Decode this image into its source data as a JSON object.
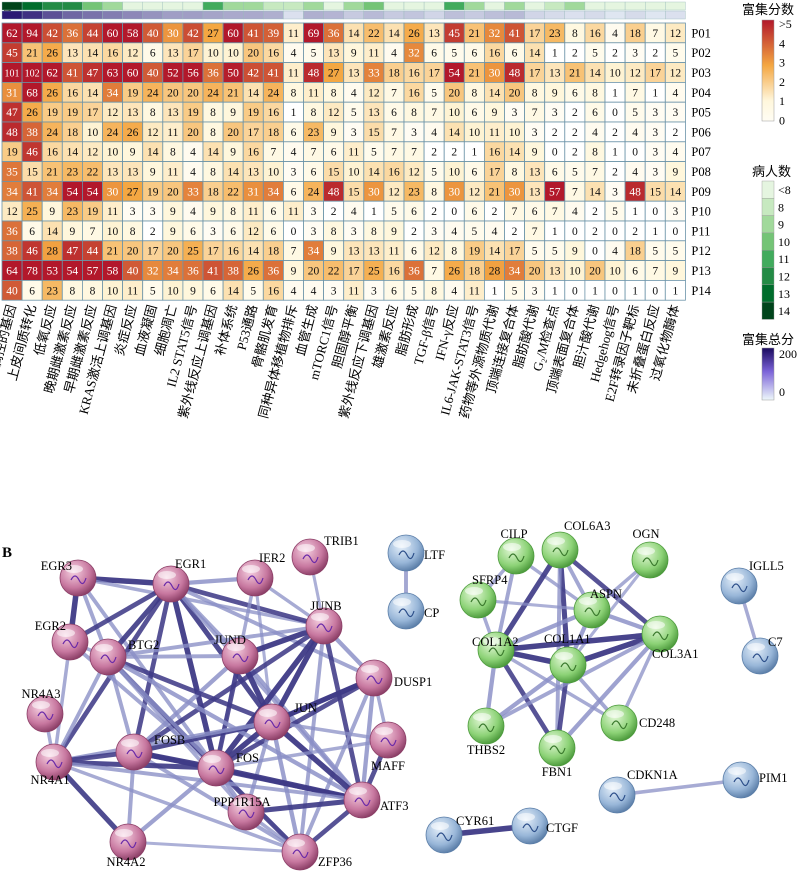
{
  "panelA": {
    "label": "A",
    "patients": [
      "P01",
      "P02",
      "P03",
      "P04",
      "P05",
      "P06",
      "P07",
      "P08",
      "P09",
      "P10",
      "P11",
      "P12",
      "P13",
      "P14"
    ],
    "pathways": [
      "响应TNF受NF-κB调控的基因",
      "上皮间质转化",
      "低氧反应",
      "晚期雌激素反应",
      "早期雌激素反应",
      "KRAS激活上调基因",
      "炎症反应",
      "血液凝固",
      "细胞凋亡",
      "IL2 STAT5信号",
      "紫外线反应上调基因",
      "补体系统",
      "P53通路",
      "骨骼肌发育",
      "同种异体移植物排斥",
      "血管生成",
      "mTORC1信号",
      "胆固醇平衡",
      "紫外线反应下调基因",
      "雄激素反应",
      "脂肪形成",
      "TGF-β信号",
      "IFN-γ反应",
      "IL6-JAK-STAT3信号",
      "药物等外源物质代谢",
      "顶端连接复合体",
      "脂肪酸代谢",
      "G₂/M检查点",
      "顶端表面复合体",
      "胆汁酸代谢",
      "Hedgehog信号",
      "E2F转录因子靶标",
      "未折叠蛋白反应",
      "过氧化物酶体"
    ],
    "matrix": [
      [
        62,
        94,
        42,
        36,
        44,
        60,
        58,
        40,
        30,
        42,
        27,
        60,
        41,
        39,
        11,
        69,
        36,
        14,
        22,
        14,
        26,
        13,
        45,
        21,
        32,
        41,
        17,
        23,
        8,
        16,
        4,
        18,
        7,
        12
      ],
      [
        45,
        21,
        26,
        13,
        14,
        16,
        12,
        6,
        13,
        17,
        10,
        10,
        20,
        16,
        4,
        5,
        13,
        9,
        11,
        4,
        32,
        6,
        5,
        6,
        16,
        6,
        14,
        1,
        2,
        5,
        2,
        3,
        2,
        5
      ],
      [
        101,
        102,
        62,
        41,
        47,
        63,
        60,
        40,
        52,
        56,
        36,
        50,
        42,
        41,
        11,
        48,
        27,
        13,
        33,
        18,
        16,
        17,
        54,
        21,
        30,
        48,
        17,
        13,
        21,
        14,
        10,
        12,
        17,
        12
      ],
      [
        31,
        68,
        26,
        16,
        14,
        34,
        19,
        24,
        20,
        20,
        24,
        21,
        14,
        24,
        8,
        11,
        8,
        4,
        12,
        7,
        16,
        5,
        20,
        8,
        14,
        20,
        8,
        9,
        6,
        8,
        1,
        7,
        1,
        4
      ],
      [
        47,
        26,
        19,
        19,
        17,
        12,
        13,
        8,
        13,
        19,
        8,
        9,
        19,
        16,
        1,
        8,
        12,
        5,
        13,
        6,
        8,
        7,
        10,
        6,
        9,
        3,
        7,
        3,
        2,
        6,
        0,
        5,
        3,
        3
      ],
      [
        48,
        38,
        24,
        18,
        10,
        24,
        26,
        12,
        11,
        20,
        8,
        20,
        17,
        18,
        6,
        23,
        9,
        3,
        15,
        7,
        3,
        4,
        14,
        10,
        11,
        10,
        3,
        2,
        2,
        4,
        2,
        4,
        3,
        2
      ],
      [
        19,
        46,
        16,
        14,
        12,
        10,
        9,
        14,
        8,
        4,
        14,
        9,
        16,
        7,
        4,
        7,
        6,
        11,
        5,
        7,
        7,
        2,
        2,
        1,
        16,
        14,
        9,
        0,
        2,
        8,
        1,
        0,
        3,
        4
      ],
      [
        35,
        15,
        21,
        23,
        22,
        13,
        13,
        9,
        11,
        4,
        8,
        14,
        13,
        10,
        3,
        6,
        15,
        10,
        14,
        16,
        12,
        5,
        10,
        6,
        17,
        8,
        13,
        6,
        5,
        7,
        2,
        4,
        3,
        9
      ],
      [
        34,
        41,
        34,
        54,
        54,
        30,
        27,
        19,
        20,
        33,
        18,
        22,
        31,
        34,
        6,
        24,
        48,
        15,
        30,
        12,
        23,
        8,
        30,
        12,
        21,
        30,
        13,
        57,
        7,
        14,
        3,
        48,
        15,
        14
      ],
      [
        12,
        25,
        9,
        23,
        19,
        11,
        3,
        3,
        9,
        4,
        9,
        8,
        11,
        6,
        11,
        3,
        2,
        4,
        1,
        5,
        6,
        2,
        0,
        6,
        2,
        7,
        6,
        7,
        4,
        2,
        5,
        1,
        0,
        3
      ],
      [
        36,
        6,
        14,
        9,
        7,
        10,
        8,
        2,
        9,
        6,
        3,
        6,
        12,
        6,
        0,
        3,
        8,
        3,
        8,
        9,
        2,
        3,
        4,
        5,
        4,
        2,
        7,
        1,
        0,
        2,
        0,
        2,
        1,
        0
      ],
      [
        38,
        46,
        28,
        47,
        44,
        21,
        20,
        17,
        20,
        25,
        17,
        16,
        14,
        18,
        7,
        34,
        9,
        13,
        13,
        11,
        6,
        12,
        8,
        19,
        14,
        17,
        5,
        5,
        9,
        0,
        4,
        18,
        5,
        5
      ],
      [
        64,
        78,
        53,
        54,
        57,
        58,
        40,
        32,
        34,
        36,
        41,
        38,
        26,
        36,
        9,
        20,
        22,
        17,
        25,
        16,
        36,
        7,
        26,
        18,
        28,
        34,
        20,
        13,
        10,
        20,
        10,
        6,
        7,
        9
      ],
      [
        40,
        6,
        23,
        8,
        8,
        10,
        11,
        5,
        10,
        9,
        6,
        14,
        5,
        16,
        4,
        4,
        3,
        11,
        3,
        6,
        5,
        8,
        4,
        11,
        1,
        5,
        3,
        1,
        0,
        1,
        0,
        1,
        0,
        1
      ]
    ],
    "patientCountBar": [
      14,
      13,
      12,
      12,
      10,
      9,
      7,
      7,
      6,
      6,
      11,
      9,
      9,
      8,
      8,
      9,
      6,
      9,
      10,
      7,
      7,
      7,
      11,
      9,
      6,
      9,
      7,
      8,
      9,
      7,
      6,
      7,
      6,
      7
    ],
    "totalBar": [
      200,
      180,
      150,
      130,
      120,
      110,
      100,
      90,
      80,
      80,
      75,
      70,
      70,
      65,
      20,
      65,
      60,
      40,
      55,
      40,
      45,
      30,
      50,
      40,
      50,
      55,
      30,
      25,
      20,
      25,
      15,
      25,
      15,
      20
    ],
    "legend": {
      "score_title": "富集分数",
      "score_ticks": [
        ">5",
        "4",
        "3",
        "2",
        "1",
        "0"
      ],
      "count_title": "病人数",
      "count_ticks": [
        "<8",
        "8",
        "9",
        "10",
        "11",
        "12",
        "13",
        "14"
      ],
      "count_colors": [
        "#e5f5e0",
        "#c7e9c0",
        "#a1d99b",
        "#74c476",
        "#41ab5d",
        "#238b45",
        "#006d2c",
        "#00441b"
      ],
      "total_title": "富集总分",
      "total_ticks": [
        "200",
        "100",
        "0"
      ]
    },
    "colors": {
      "score_high": "#b2182b",
      "score_mid": "#f4a742",
      "score_low": "#fff7dc",
      "grid": "#6b93a8"
    }
  },
  "panelB": {
    "label": "B",
    "nodes": [
      {
        "id": "EGR3",
        "group": "pink"
      },
      {
        "id": "EGR1",
        "group": "pink"
      },
      {
        "id": "IER2",
        "group": "pink"
      },
      {
        "id": "TRIB1",
        "group": "pink"
      },
      {
        "id": "EGR2",
        "group": "pink"
      },
      {
        "id": "JUND",
        "group": "pink"
      },
      {
        "id": "JUNB",
        "group": "pink"
      },
      {
        "id": "BTG2",
        "group": "pink"
      },
      {
        "id": "NR4A3",
        "group": "pink"
      },
      {
        "id": "DUSP1",
        "group": "pink"
      },
      {
        "id": "JUN",
        "group": "pink"
      },
      {
        "id": "FOSB",
        "group": "pink"
      },
      {
        "id": "FOS",
        "group": "pink"
      },
      {
        "id": "MAFF",
        "group": "pink"
      },
      {
        "id": "NR4A1",
        "group": "pink"
      },
      {
        "id": "ATF3",
        "group": "pink"
      },
      {
        "id": "PPP1R15A",
        "group": "pink"
      },
      {
        "id": "NR4A2",
        "group": "pink"
      },
      {
        "id": "ZFP36",
        "group": "pink"
      },
      {
        "id": "LTF",
        "group": "blue"
      },
      {
        "id": "CP",
        "group": "blue"
      },
      {
        "id": "CILP",
        "group": "green"
      },
      {
        "id": "COL6A3",
        "group": "green"
      },
      {
        "id": "OGN",
        "group": "green"
      },
      {
        "id": "SFRP4",
        "group": "green"
      },
      {
        "id": "ASPN",
        "group": "green"
      },
      {
        "id": "COL1A2",
        "group": "green"
      },
      {
        "id": "COL1A1",
        "group": "green"
      },
      {
        "id": "COL3A1",
        "group": "green"
      },
      {
        "id": "CD248",
        "group": "green"
      },
      {
        "id": "THBS2",
        "group": "green"
      },
      {
        "id": "FBN1",
        "group": "green"
      },
      {
        "id": "IGLL5",
        "group": "blue"
      },
      {
        "id": "C7",
        "group": "blue"
      },
      {
        "id": "CDKN1A",
        "group": "blue"
      },
      {
        "id": "PIM1",
        "group": "blue"
      },
      {
        "id": "CYR61",
        "group": "blue"
      },
      {
        "id": "CTGF",
        "group": "blue"
      }
    ],
    "edges": [
      [
        "EGR3",
        "EGR1",
        1
      ],
      [
        "EGR3",
        "EGR2",
        1
      ],
      [
        "EGR3",
        "BTG2",
        0.6
      ],
      [
        "EGR3",
        "JUNB",
        0.5
      ],
      [
        "EGR3",
        "FOS",
        0.6
      ],
      [
        "EGR1",
        "IER2",
        0.7
      ],
      [
        "EGR1",
        "JUND",
        0.6
      ],
      [
        "EGR1",
        "JUNB",
        0.8
      ],
      [
        "EGR1",
        "BTG2",
        0.9
      ],
      [
        "EGR1",
        "FOSB",
        0.8
      ],
      [
        "EGR1",
        "FOS",
        1
      ],
      [
        "EGR1",
        "JUN",
        0.9
      ],
      [
        "EGR1",
        "NR4A1",
        0.8
      ],
      [
        "EGR1",
        "EGR2",
        0.8
      ],
      [
        "EGR1",
        "ATF3",
        0.6
      ],
      [
        "EGR1",
        "DUSP1",
        0.6
      ],
      [
        "IER2",
        "JUNB",
        0.5
      ],
      [
        "IER2",
        "JUN",
        0.4
      ],
      [
        "IER2",
        "FOS",
        0.5
      ],
      [
        "TRIB1",
        "JUNB",
        0.4
      ],
      [
        "EGR2",
        "NR4A1",
        0.5
      ],
      [
        "EGR2",
        "FOS",
        0.6
      ],
      [
        "EGR2",
        "BTG2",
        0.5
      ],
      [
        "JUND",
        "JUNB",
        1
      ],
      [
        "JUND",
        "JUN",
        1
      ],
      [
        "JUND",
        "FOS",
        0.8
      ],
      [
        "JUND",
        "FOSB",
        0.7
      ],
      [
        "JUND",
        "BTG2",
        0.6
      ],
      [
        "JUND",
        "ATF3",
        0.7
      ],
      [
        "JUNB",
        "JUN",
        1
      ],
      [
        "JUNB",
        "FOS",
        1
      ],
      [
        "JUNB",
        "FOSB",
        0.8
      ],
      [
        "JUNB",
        "DUSP1",
        0.7
      ],
      [
        "JUNB",
        "ATF3",
        0.8
      ],
      [
        "JUNB",
        "BTG2",
        0.6
      ],
      [
        "JUNB",
        "ZFP36",
        0.6
      ],
      [
        "BTG2",
        "FOSB",
        0.6
      ],
      [
        "BTG2",
        "FOS",
        0.8
      ],
      [
        "BTG2",
        "JUN",
        0.8
      ],
      [
        "BTG2",
        "NR4A1",
        0.6
      ],
      [
        "BTG2",
        "ATF3",
        0.7
      ],
      [
        "BTG2",
        "ZFP36",
        0.6
      ],
      [
        "BTG2",
        "PPP1R15A",
        0.5
      ],
      [
        "DUSP1",
        "JUN",
        0.8
      ],
      [
        "DUSP1",
        "FOS",
        0.8
      ],
      [
        "DUSP1",
        "ATF3",
        0.7
      ],
      [
        "DUSP1",
        "ZFP36",
        0.6
      ],
      [
        "DUSP1",
        "MAFF",
        0.5
      ],
      [
        "JUN",
        "FOS",
        1
      ],
      [
        "JUN",
        "FOSB",
        0.9
      ],
      [
        "JUN",
        "ATF3",
        1
      ],
      [
        "JUN",
        "NR4A1",
        0.7
      ],
      [
        "JUN",
        "ZFP36",
        0.7
      ],
      [
        "JUN",
        "PPP1R15A",
        0.6
      ],
      [
        "JUN",
        "MAFF",
        0.5
      ],
      [
        "JUN",
        "DUSP1",
        0.9
      ],
      [
        "FOSB",
        "FOS",
        1
      ],
      [
        "FOSB",
        "NR4A1",
        0.8
      ],
      [
        "FOSB",
        "ATF3",
        0.8
      ],
      [
        "FOSB",
        "NR4A2",
        0.6
      ],
      [
        "FOSB",
        "ZFP36",
        0.6
      ],
      [
        "FOS",
        "NR4A1",
        0.9
      ],
      [
        "FOS",
        "ATF3",
        1
      ],
      [
        "FOS",
        "NR4A2",
        0.7
      ],
      [
        "FOS",
        "ZFP36",
        0.8
      ],
      [
        "FOS",
        "PPP1R15A",
        0.7
      ],
      [
        "FOS",
        "MAFF",
        0.5
      ],
      [
        "MAFF",
        "ATF3",
        0.8
      ],
      [
        "NR4A1",
        "NR4A2",
        0.9
      ],
      [
        "NR4A1",
        "NR4A3",
        0.5
      ],
      [
        "NR4A1",
        "ATF3",
        0.6
      ],
      [
        "NR4A1",
        "ZFP36",
        0.5
      ],
      [
        "ATF3",
        "PPP1R15A",
        0.9
      ],
      [
        "ATF3",
        "ZFP36",
        0.8
      ],
      [
        "PPP1R15A",
        "ZFP36",
        0.5
      ],
      [
        "NR4A2",
        "ZFP36",
        0.4
      ],
      [
        "LTF",
        "CP",
        0.6
      ],
      [
        "CILP",
        "SFRP4",
        0.5
      ],
      [
        "CILP",
        "COL1A2",
        0.6
      ],
      [
        "CILP",
        "ASPN",
        0.5
      ],
      [
        "COL6A3",
        "COL1A2",
        0.9
      ],
      [
        "COL6A3",
        "COL1A1",
        0.9
      ],
      [
        "COL6A3",
        "ASPN",
        0.6
      ],
      [
        "COL6A3",
        "COL3A1",
        0.8
      ],
      [
        "COL6A3",
        "FBN1",
        0.6
      ],
      [
        "OGN",
        "ASPN",
        0.5
      ],
      [
        "OGN",
        "COL1A1",
        0.4
      ],
      [
        "SFRP4",
        "COL1A2",
        0.5
      ],
      [
        "SFRP4",
        "ASPN",
        0.4
      ],
      [
        "ASPN",
        "COL1A2",
        0.7
      ],
      [
        "ASPN",
        "COL1A1",
        0.7
      ],
      [
        "ASPN",
        "COL3A1",
        0.7
      ],
      [
        "COL1A2",
        "COL1A1",
        1
      ],
      [
        "COL1A2",
        "COL3A1",
        1
      ],
      [
        "COL1A2",
        "THBS2",
        0.7
      ],
      [
        "COL1A2",
        "FBN1",
        0.8
      ],
      [
        "COL1A2",
        "CD248",
        0.5
      ],
      [
        "COL1A1",
        "COL3A1",
        1
      ],
      [
        "COL1A1",
        "FBN1",
        0.8
      ],
      [
        "COL1A1",
        "THBS2",
        0.7
      ],
      [
        "COL1A1",
        "CD248",
        0.6
      ],
      [
        "COL3A1",
        "FBN1",
        0.7
      ],
      [
        "COL3A1",
        "CD248",
        0.5
      ],
      [
        "COL3A1",
        "THBS2",
        0.6
      ],
      [
        "IGLL5",
        "C7",
        0.5
      ],
      [
        "CDKN1A",
        "PIM1",
        0.5
      ],
      [
        "CYR61",
        "CTGF",
        1
      ]
    ]
  }
}
